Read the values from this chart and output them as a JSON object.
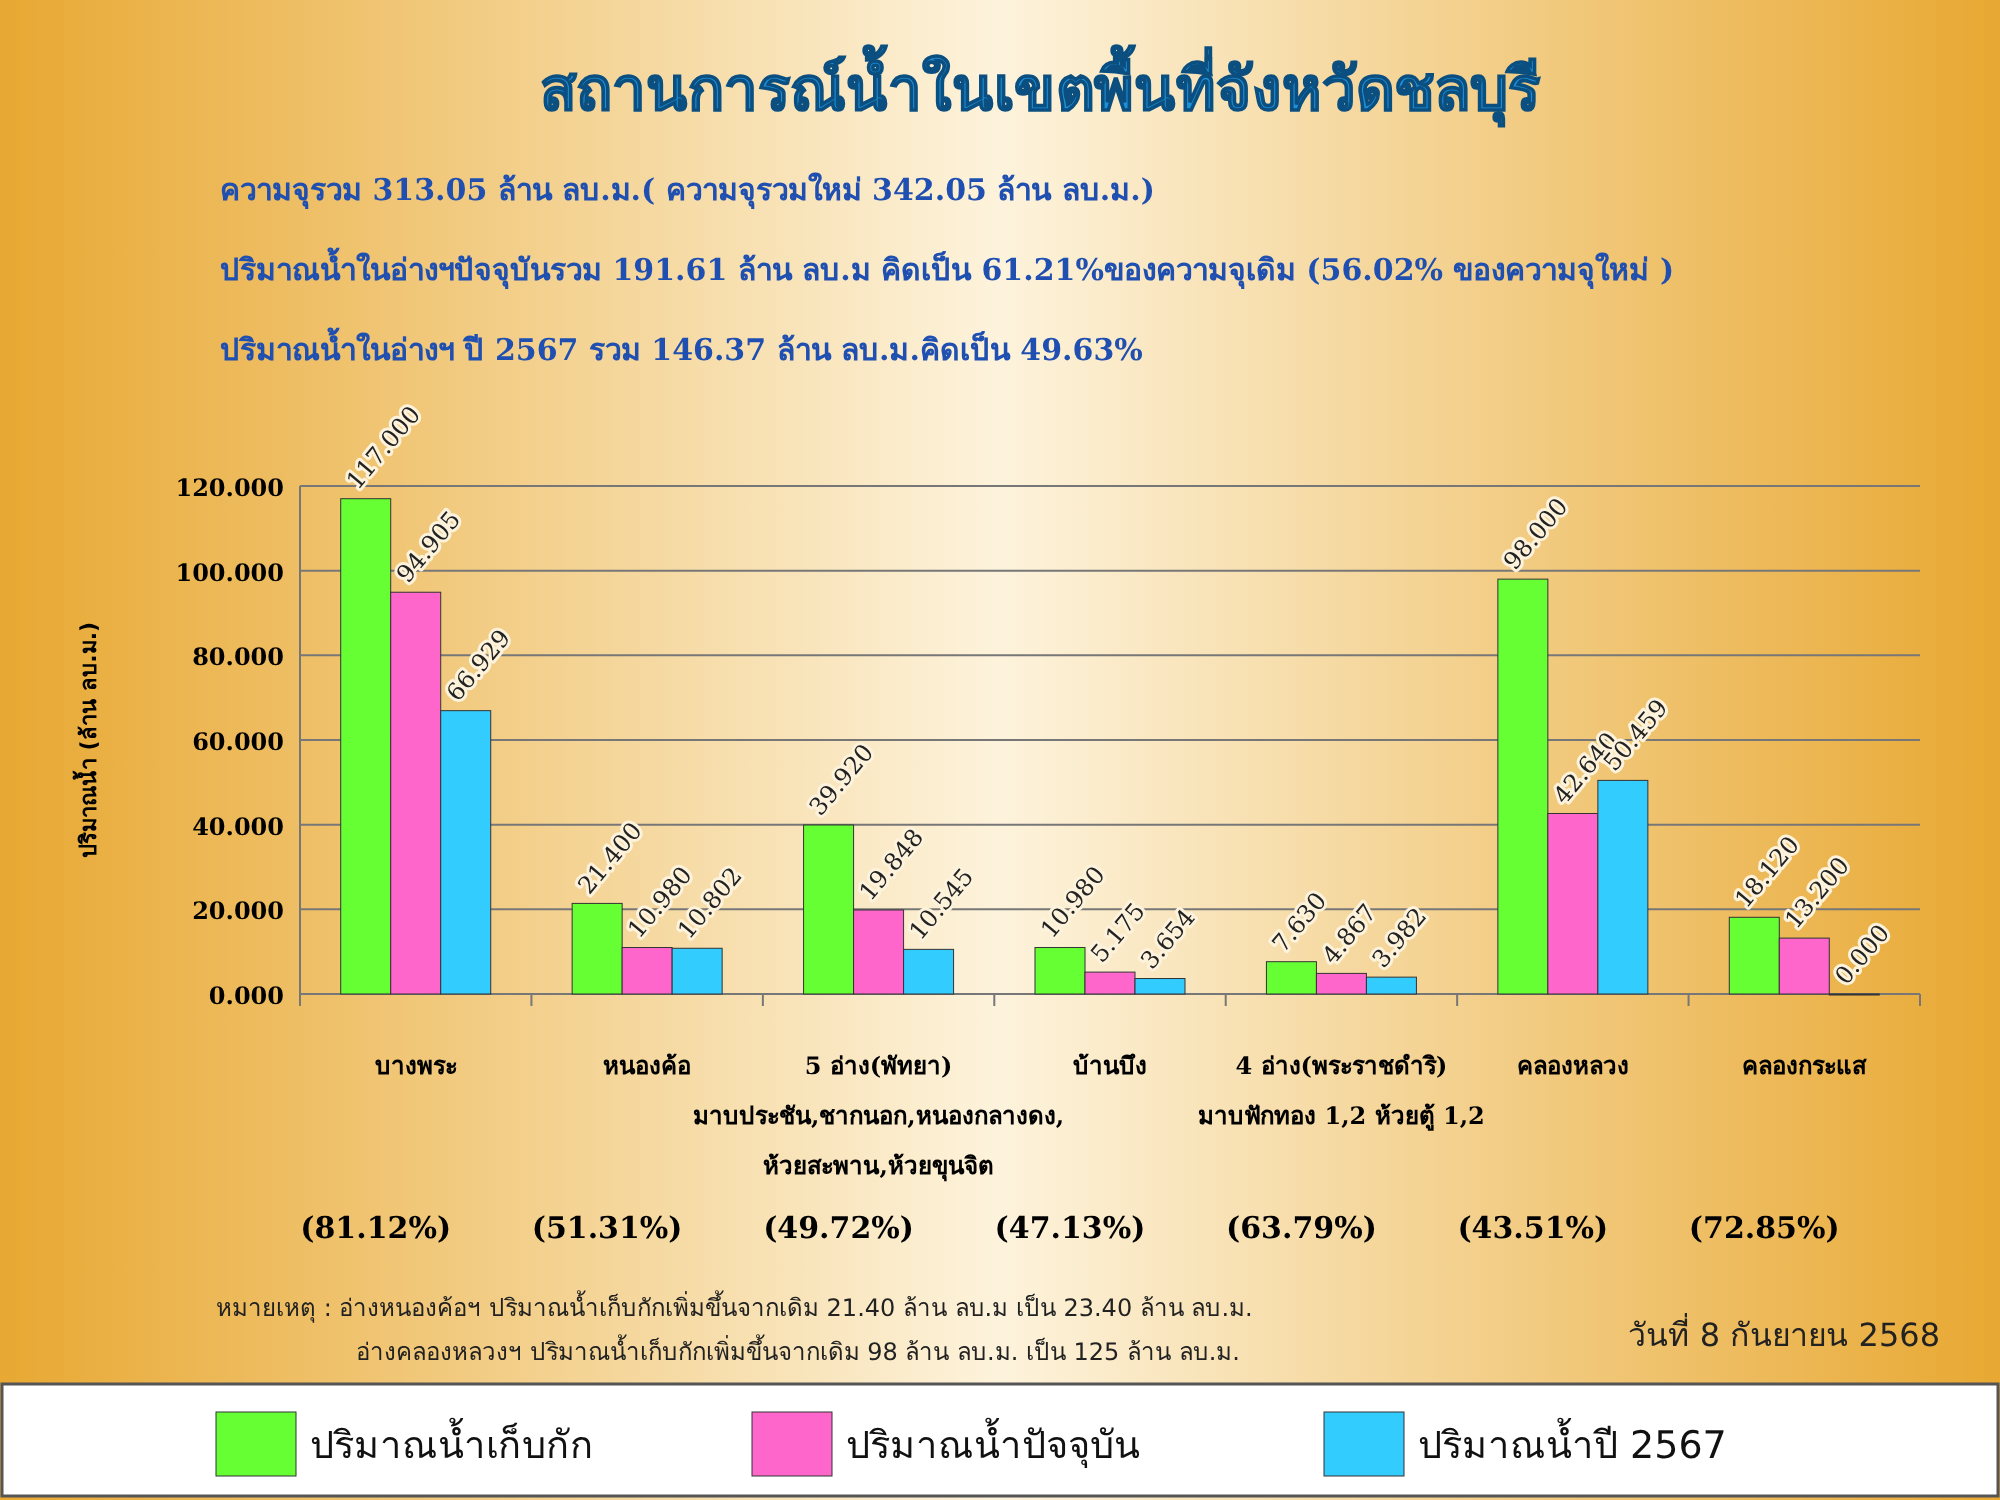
{
  "chart_data": {
    "type": "bar",
    "title": "สถานการณ์น้ำในเขตพื้นที่จังหวัดชลบุรี",
    "subtitle": "ความจุรวม  313.05 ล้าน ลบ.ม.( ความจุรวมใหม่ 342.05 ล้าน ลบ.ม.)\nปริมาณน้ำในอ่างฯปัจจุบันรวม 191.61 ล้าน ลบ.ม คิดเป็น 61.21%ของความจุเดิม (56.02% ของความจุใหม่ )\nปริมาณน้ำในอ่างฯ ปี 2567 รวม 146.37 ล้าน ลบ.ม.คิดเป็น 49.63%",
    "ylabel": "ปริมาณน้ำ (ล้าน ลบ.ม.)",
    "categories": [
      "บางพระ",
      "หนองค้อ",
      "5 อ่าง(พัทยา)\nมาบประชัน,ชากนอก,หนองกลางดง,\nห้วยสะพาน,ห้วยขุนจิต",
      "บ้านบึง",
      "4 อ่าง(พระราชดำริ)\nมาบฟักทอง 1,2 ห้วยตู้ 1,2",
      "คลองหลวง",
      "คลองกระแส"
    ],
    "series": [
      {
        "name": "ปริมาณน้ำเก็บกัก",
        "color": "#66ff33",
        "values": [
          117,
          21.4,
          39.92,
          10.98,
          7.63,
          98,
          18.12
        ],
        "value_labels": [
          "117.000",
          "21.400",
          "39.920",
          "10.980",
          "7.630",
          "98.000",
          "18.120"
        ]
      },
      {
        "name": "ปริมาณน้ำปัจจุบัน",
        "color": "#ff66cc",
        "values": [
          94.905,
          10.98,
          19.848,
          5.175,
          4.867,
          42.64,
          13.2
        ],
        "value_labels": [
          "94.905",
          "10.980",
          "19.848",
          "5.175",
          "4.867",
          "42.640",
          "13.200"
        ]
      },
      {
        "name": "ปริมาณน้ำปี 2567",
        "color": "#33ccff",
        "values": [
          66.929,
          10.802,
          10.545,
          3.654,
          3.982,
          50.459,
          0
        ],
        "value_labels": [
          "66.929",
          "10.802",
          "10.545",
          "3.654",
          "3.982",
          "50.459",
          "0.000"
        ]
      }
    ],
    "ylim": [
      0,
      120
    ],
    "yticks": [
      {
        "value": 0,
        "label": "0.000"
      },
      {
        "value": 20,
        "label": "20.000"
      },
      {
        "value": 40,
        "label": "40.000"
      },
      {
        "value": 60,
        "label": "60.000"
      },
      {
        "value": 80,
        "label": "80.000"
      },
      {
        "value": 100,
        "label": "100.000"
      },
      {
        "value": 120,
        "label": "120.000"
      }
    ],
    "grid": "y",
    "legend": "bottom",
    "annotations": [
      "(81.12%)",
      "(51.31%)",
      "(49.72%)",
      "(47.13%)",
      "(63.79%)",
      "(43.51%)",
      "(72.85%)",
      "หมายเหตุ :  อ่างหนองค้อฯ ปริมาณน้ำเก็บกักเพิ่มขึ้นจากเดิม 21.40 ล้าน ลบ.ม เป็น 23.40 ล้าน ลบ.ม.",
      "อ่างคลองหลวงฯ ปริมาณน้ำเก็บกักเพิ่มขึ้นจากเดิม 98 ล้าน ลบ.ม. เป็น 125 ล้าน ลบ.ม.",
      "วันที่ 8 กันยายน 2568"
    ]
  }
}
